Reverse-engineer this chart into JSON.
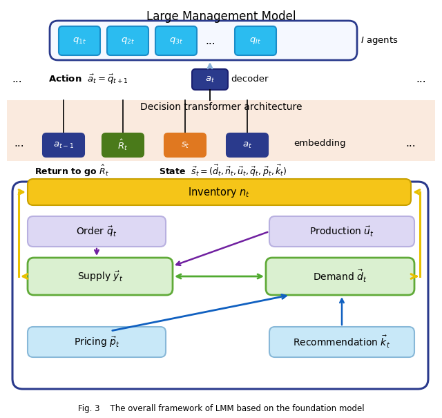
{
  "title": "Large Management Model",
  "caption": "Fig. 3    The overall framework of LMM based on the foundation model",
  "bg_color": "#ffffff",
  "agent_box_color": "#2bbcf0",
  "agent_box_edge": "#1a8cc8",
  "agent_outer_box_color": "#f5f8ff",
  "agent_outer_box_edge": "#2a3a8c",
  "action_box_color": "#2a3a8c",
  "action_box_text": "#ffffff",
  "transformer_bg": "#faeade",
  "embedding_colors": [
    "#2a3a8c",
    "#4a7a1a",
    "#e07820",
    "#2a3a8c"
  ],
  "embedding_labels": [
    "$a_{t-1}$",
    "$\\hat{R}_t$",
    "$s_t$",
    "$a_t$"
  ],
  "inventory_color": "#f5c518",
  "inventory_edge": "#c8a000",
  "order_color": "#ddd8f4",
  "order_edge": "#b8b0e0",
  "production_color": "#ddd8f4",
  "production_edge": "#b8b0e0",
  "supply_color": "#daf0d0",
  "supply_edge": "#60aa38",
  "demand_color": "#daf0d0",
  "demand_edge": "#60aa38",
  "pricing_color": "#c8e8f8",
  "pricing_edge": "#88b8d8",
  "recommendation_color": "#c8e8f8",
  "recommendation_edge": "#88b8d8",
  "bottom_outer_edge": "#2a3a8c",
  "yellow_arrow": "#e8c000",
  "purple_arrow": "#7020a0",
  "green_arrow": "#50aa30",
  "blue_arrow": "#1060c0"
}
